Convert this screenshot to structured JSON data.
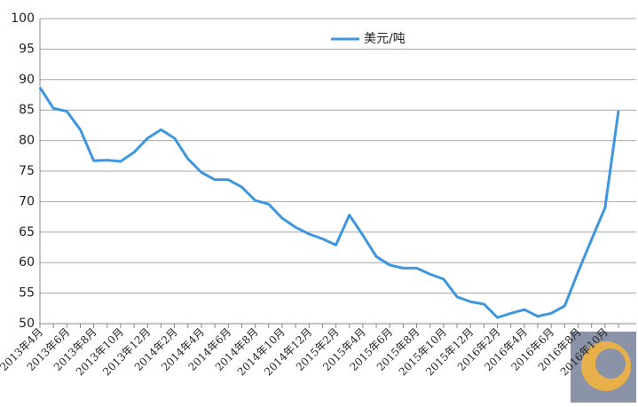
{
  "chart_data": {
    "type": "line",
    "categories": [
      "2013年4月",
      null,
      "2013年6月",
      null,
      "2013年8月",
      null,
      "2013年10月",
      null,
      "2013年12月",
      null,
      "2014年2月",
      null,
      "2014年4月",
      null,
      "2014年6月",
      null,
      "2014年8月",
      null,
      "2014年10月",
      null,
      "2014年12月",
      null,
      "2015年2月",
      null,
      "2015年4月",
      null,
      "2015年6月",
      null,
      "2015年8月",
      null,
      "2015年10月",
      null,
      "2015年12月",
      null,
      "2016年2月",
      null,
      "2016年4月",
      null,
      "2016年6月",
      null,
      "2016年8月",
      null,
      "2016年10月",
      null
    ],
    "series": [
      {
        "name": "美元/吨",
        "color": "#3d97e0",
        "values": [
          88.7,
          85.3,
          84.8,
          81.8,
          76.7,
          76.8,
          76.6,
          78.1,
          80.4,
          81.8,
          80.4,
          77.0,
          74.8,
          73.6,
          73.6,
          72.4,
          70.2,
          69.6,
          67.3,
          65.8,
          64.7,
          63.9,
          62.9,
          67.8,
          64.5,
          61.0,
          59.6,
          59.1,
          59.1,
          58.1,
          57.3,
          54.4,
          53.6,
          53.2,
          51.0,
          51.7,
          52.3,
          51.2,
          51.7,
          52.9,
          58.5,
          63.8,
          69.0,
          84.9
        ]
      }
    ],
    "ylim": [
      50,
      100
    ],
    "yticks": [
      50,
      55,
      60,
      65,
      70,
      75,
      80,
      85,
      90,
      95,
      100
    ],
    "grid": true,
    "legend": "top"
  }
}
